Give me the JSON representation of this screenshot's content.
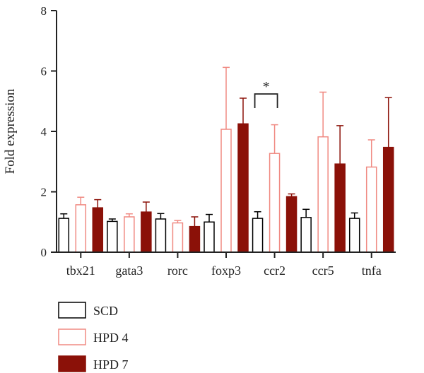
{
  "chart_data": {
    "type": "bar",
    "title": "",
    "xlabel": "",
    "ylabel": "Fold expression",
    "ylim": [
      0,
      8
    ],
    "yticks": [
      0,
      2,
      4,
      6,
      8
    ],
    "grid": false,
    "legend_position": "bottom-left",
    "categories": [
      "tbx21",
      "gata3",
      "rorc",
      "foxp3",
      "ccr2",
      "ccr5",
      "tnfa"
    ],
    "series": [
      {
        "name": "SCD",
        "fill": "#ffffff",
        "stroke": "#000000",
        "values": [
          1.12,
          1.02,
          1.1,
          1.0,
          1.12,
          1.15,
          1.12
        ],
        "errors": [
          0.15,
          0.08,
          0.18,
          0.25,
          0.22,
          0.27,
          0.18
        ]
      },
      {
        "name": "HPD 4",
        "fill": "#ffffff",
        "stroke": "#f08a82",
        "values": [
          1.57,
          1.17,
          0.97,
          4.07,
          3.27,
          3.82,
          2.82
        ],
        "errors": [
          0.25,
          0.1,
          0.08,
          2.05,
          0.95,
          1.48,
          0.9
        ]
      },
      {
        "name": "HPD 7",
        "fill": "#8b1108",
        "stroke": "#8b1108",
        "values": [
          1.47,
          1.33,
          0.85,
          4.25,
          1.84,
          2.92,
          3.47
        ],
        "errors": [
          0.27,
          0.33,
          0.32,
          0.85,
          0.09,
          1.27,
          1.65
        ]
      }
    ],
    "annotations": [
      {
        "text": "*",
        "category": "ccr2",
        "from_series": "SCD",
        "to_series": "HPD 4"
      }
    ]
  }
}
